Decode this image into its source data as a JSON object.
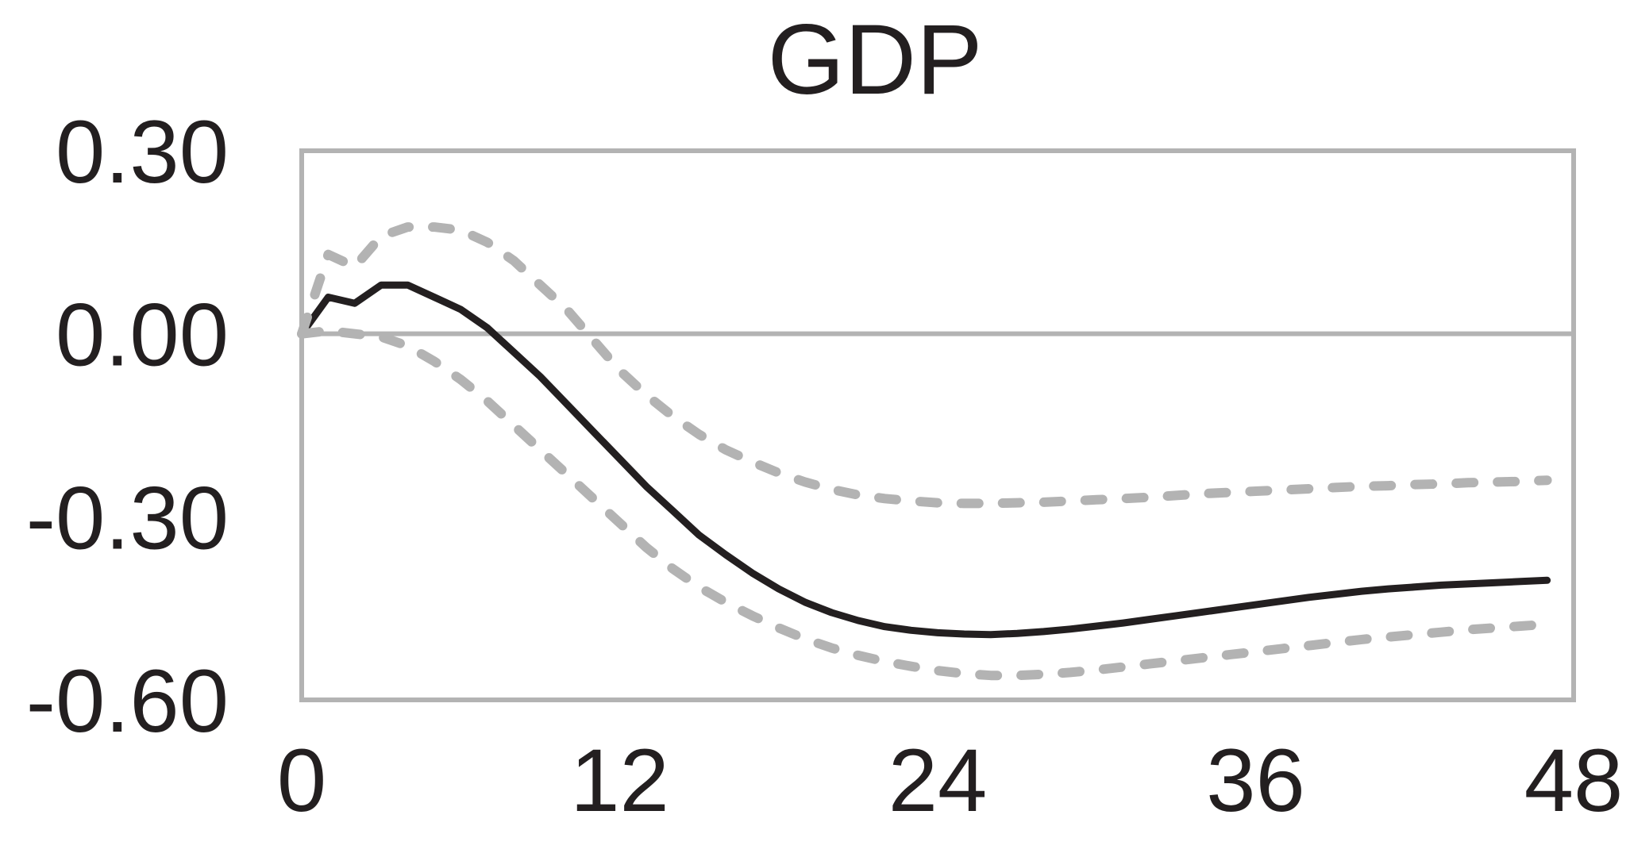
{
  "chart_data": {
    "type": "line",
    "title": "GDP",
    "xlabel": "",
    "ylabel": "",
    "xlim": [
      0,
      48
    ],
    "ylim": [
      -0.6,
      0.3
    ],
    "x_ticks": [
      0,
      12,
      24,
      36,
      48
    ],
    "x_tick_labels": [
      "0",
      "12",
      "24",
      "36",
      "48"
    ],
    "y_ticks": [
      0.3,
      0.0,
      -0.3,
      -0.6
    ],
    "y_tick_labels": [
      "0.30",
      "0.00",
      "-0.30",
      "-0.60"
    ],
    "grid": false,
    "zero_line": true,
    "legend": "none",
    "colors": {
      "response": "#231f20",
      "bands": "#b3b3b3",
      "frame": "#b3b3b3",
      "zero_line": "#b3b3b3",
      "text": "#231f20"
    },
    "series": [
      {
        "role": "response",
        "style": "solid",
        "x": [
          0,
          1,
          2,
          3,
          4,
          5,
          6,
          7,
          8,
          9,
          10,
          11,
          12,
          13,
          14,
          15,
          16,
          17,
          18,
          19,
          20,
          21,
          22,
          23,
          24,
          25,
          26,
          27,
          28,
          29,
          30,
          31,
          32,
          33,
          34,
          35,
          36,
          37,
          38,
          39,
          40,
          41,
          42,
          43,
          44,
          45,
          46,
          47
        ],
        "y": [
          0.0,
          0.06,
          0.05,
          0.08,
          0.08,
          0.06,
          0.04,
          0.01,
          -0.03,
          -0.07,
          -0.115,
          -0.16,
          -0.205,
          -0.25,
          -0.29,
          -0.33,
          -0.362,
          -0.392,
          -0.418,
          -0.44,
          -0.457,
          -0.47,
          -0.48,
          -0.486,
          -0.49,
          -0.492,
          -0.493,
          -0.491,
          -0.488,
          -0.484,
          -0.479,
          -0.474,
          -0.468,
          -0.462,
          -0.456,
          -0.45,
          -0.444,
          -0.438,
          -0.432,
          -0.427,
          -0.422,
          -0.418,
          -0.415,
          -0.412,
          -0.41,
          -0.408,
          -0.406,
          -0.404
        ]
      },
      {
        "role": "upper-band",
        "style": "dashed",
        "x": [
          0,
          1,
          2,
          3,
          4,
          5,
          6,
          7,
          8,
          9,
          10,
          11,
          12,
          13,
          14,
          15,
          16,
          17,
          18,
          19,
          20,
          21,
          22,
          23,
          24,
          25,
          26,
          27,
          28,
          29,
          30,
          31,
          32,
          33,
          34,
          35,
          36,
          37,
          38,
          39,
          40,
          41,
          42,
          43,
          44,
          45,
          46,
          47
        ],
        "y": [
          0.0,
          0.13,
          0.11,
          0.16,
          0.175,
          0.175,
          0.17,
          0.15,
          0.12,
          0.08,
          0.04,
          -0.01,
          -0.06,
          -0.1,
          -0.135,
          -0.165,
          -0.19,
          -0.21,
          -0.228,
          -0.243,
          -0.255,
          -0.264,
          -0.27,
          -0.274,
          -0.277,
          -0.278,
          -0.278,
          -0.277,
          -0.276,
          -0.274,
          -0.272,
          -0.27,
          -0.268,
          -0.265,
          -0.262,
          -0.26,
          -0.258,
          -0.256,
          -0.254,
          -0.252,
          -0.25,
          -0.249,
          -0.247,
          -0.246,
          -0.244,
          -0.243,
          -0.242,
          -0.24
        ]
      },
      {
        "role": "lower-band",
        "style": "dashed",
        "x": [
          0,
          1,
          2,
          3,
          4,
          5,
          6,
          7,
          8,
          9,
          10,
          11,
          12,
          13,
          14,
          15,
          16,
          17,
          18,
          19,
          20,
          21,
          22,
          23,
          24,
          25,
          26,
          27,
          28,
          29,
          30,
          31,
          32,
          33,
          34,
          35,
          36,
          37,
          38,
          39,
          40,
          41,
          42,
          43,
          44,
          45,
          46,
          47
        ],
        "y": [
          0.0,
          0.005,
          0.0,
          -0.005,
          -0.02,
          -0.045,
          -0.075,
          -0.11,
          -0.15,
          -0.19,
          -0.23,
          -0.27,
          -0.31,
          -0.35,
          -0.385,
          -0.415,
          -0.44,
          -0.462,
          -0.482,
          -0.5,
          -0.515,
          -0.527,
          -0.537,
          -0.545,
          -0.552,
          -0.557,
          -0.56,
          -0.56,
          -0.558,
          -0.555,
          -0.551,
          -0.546,
          -0.541,
          -0.536,
          -0.531,
          -0.526,
          -0.521,
          -0.516,
          -0.511,
          -0.506,
          -0.501,
          -0.497,
          -0.493,
          -0.489,
          -0.485,
          -0.482,
          -0.479,
          -0.476
        ]
      }
    ]
  }
}
